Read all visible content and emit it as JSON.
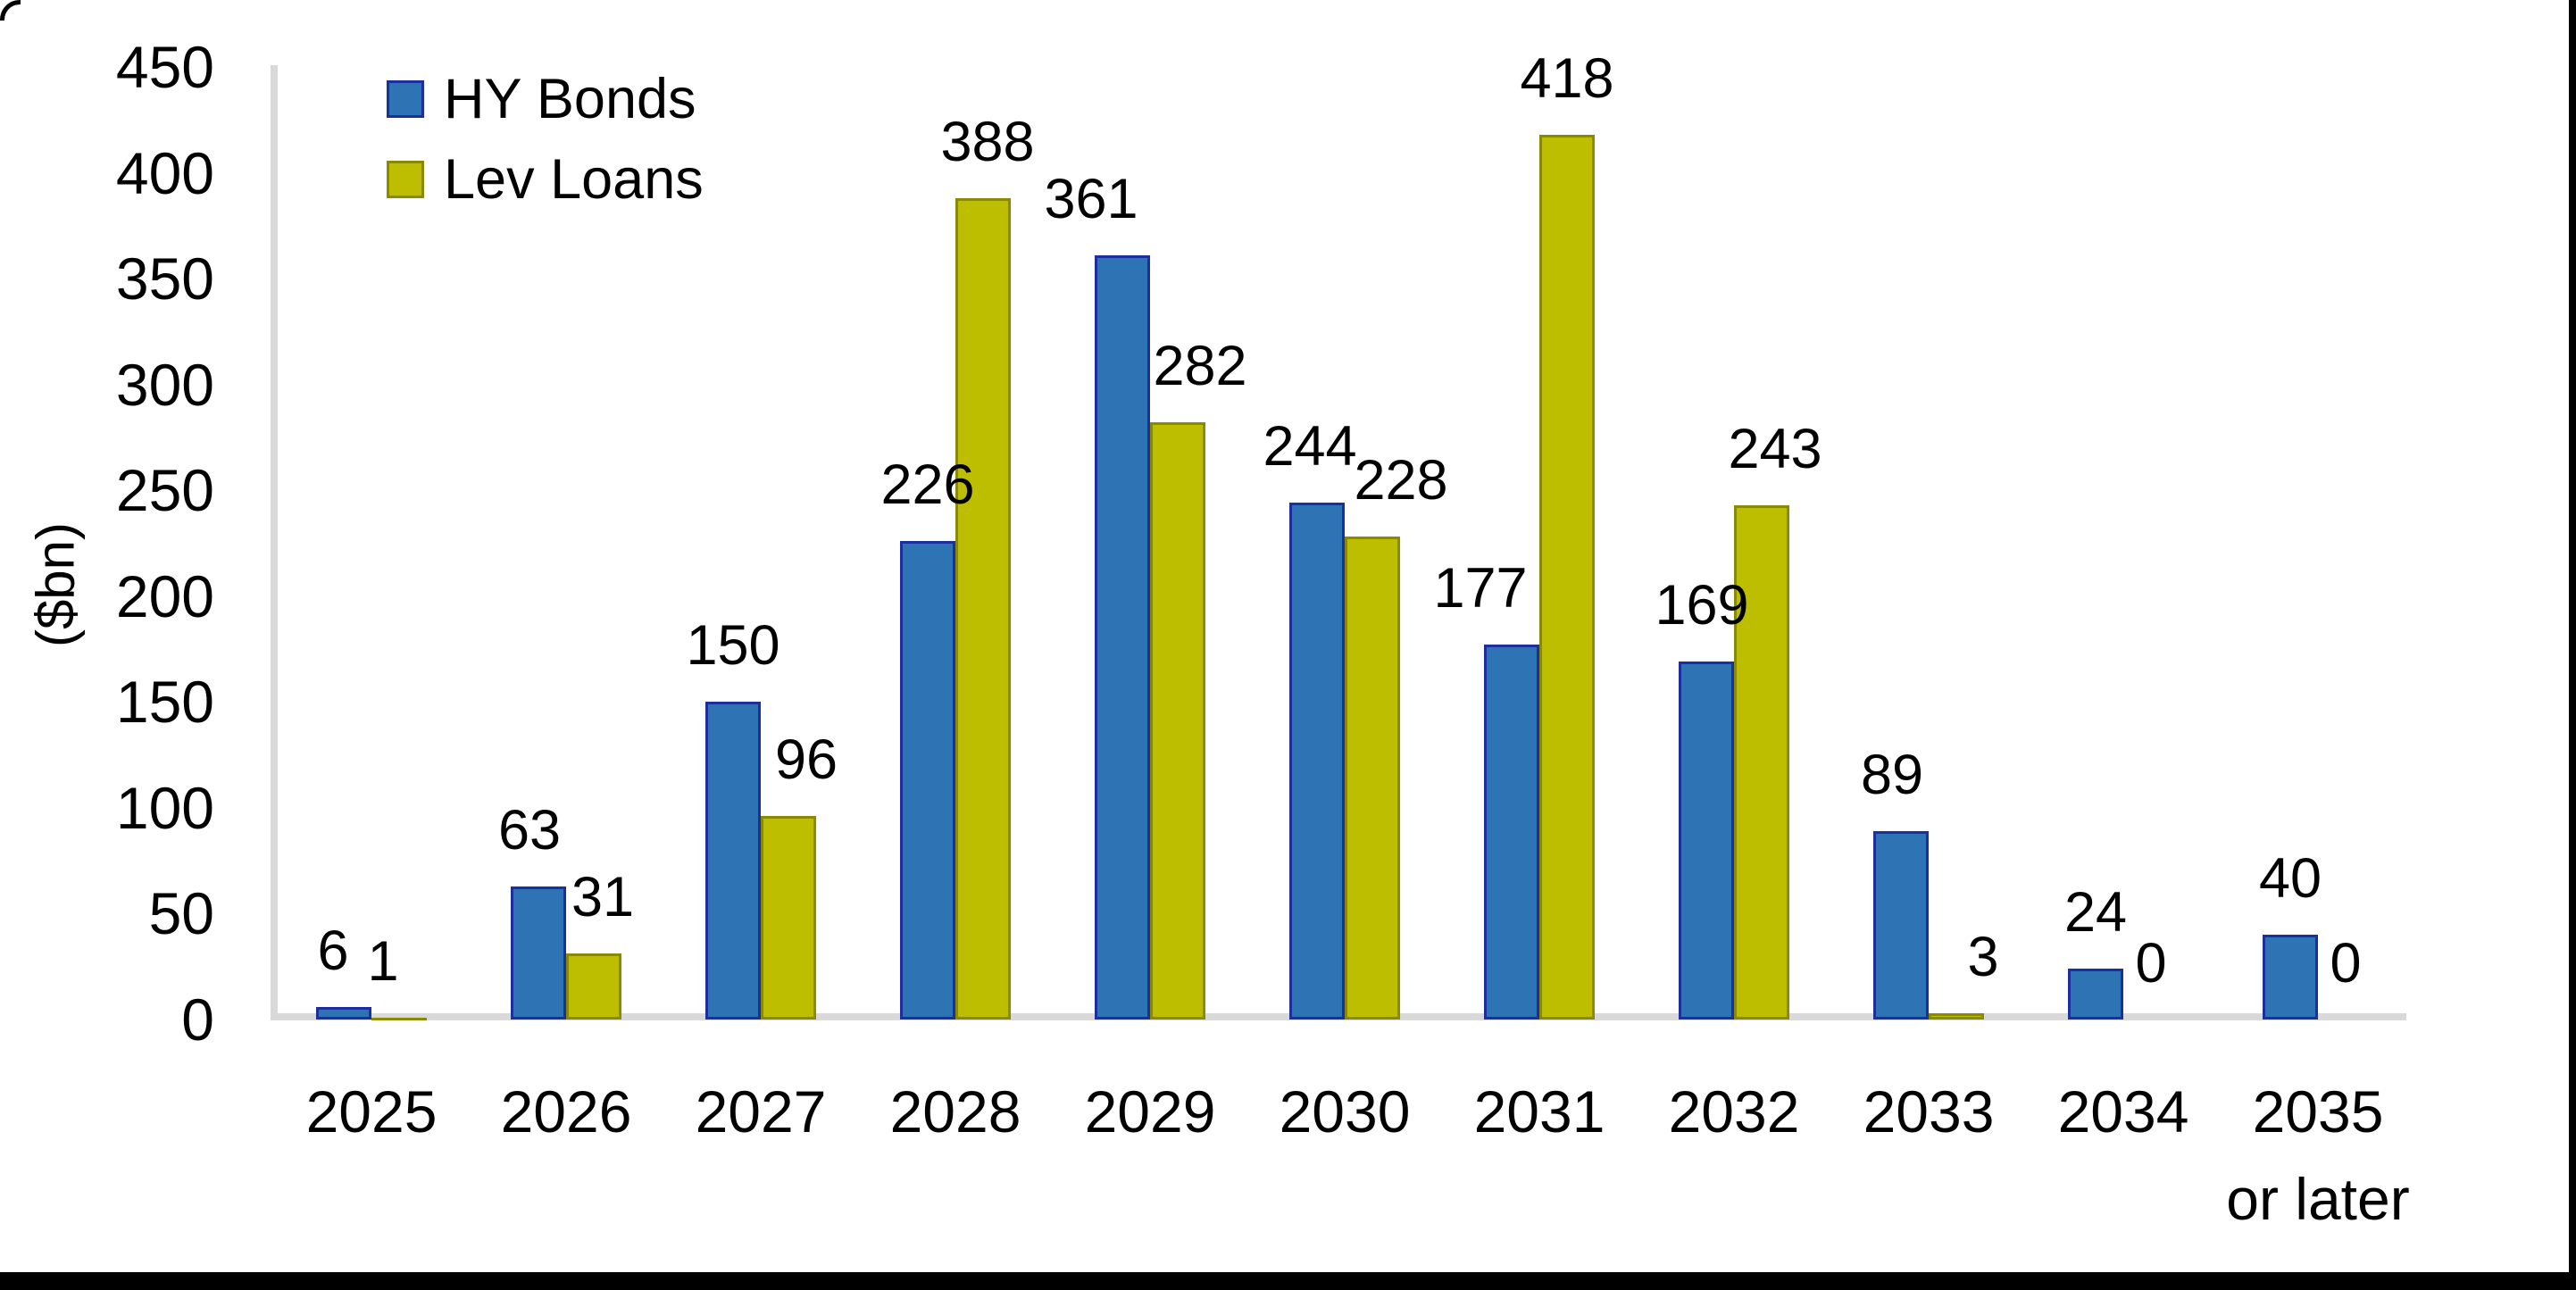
{
  "chart_data": {
    "type": "bar",
    "title": "",
    "ylabel": "($bn)",
    "xlabel": "",
    "categories": [
      "2025",
      "2026",
      "2027",
      "2028",
      "2029",
      "2030",
      "2031",
      "2032",
      "2033",
      "2034",
      "2035\nor later"
    ],
    "series": [
      {
        "name": "HY Bonds",
        "fill_color": "#2E74B5",
        "border_color": "#1C2F9E",
        "values": [
          6,
          63,
          150,
          226,
          361,
          244,
          177,
          169,
          89,
          24,
          40
        ]
      },
      {
        "name": "Lev Loans",
        "fill_color": "#BEBE00",
        "border_color": "#8A8A00",
        "values": [
          1,
          31,
          96,
          388,
          282,
          228,
          418,
          243,
          3,
          0,
          0
        ]
      }
    ],
    "ylim": [
      0,
      450
    ],
    "yticks": [
      0,
      50,
      100,
      150,
      200,
      250,
      300,
      350,
      400,
      450
    ],
    "grid": false,
    "legend_position": "top-left",
    "axis_color": "#d9d9d9",
    "text_color": "#000000",
    "label_dx": [
      [
        -12,
        -10,
        0,
        0,
        -35,
        -8,
        -35,
        -5,
        -10,
        0,
        0
      ],
      [
        -18,
        10,
        20,
        5,
        25,
        32,
        0,
        15,
        30,
        0,
        0
      ]
    ]
  }
}
